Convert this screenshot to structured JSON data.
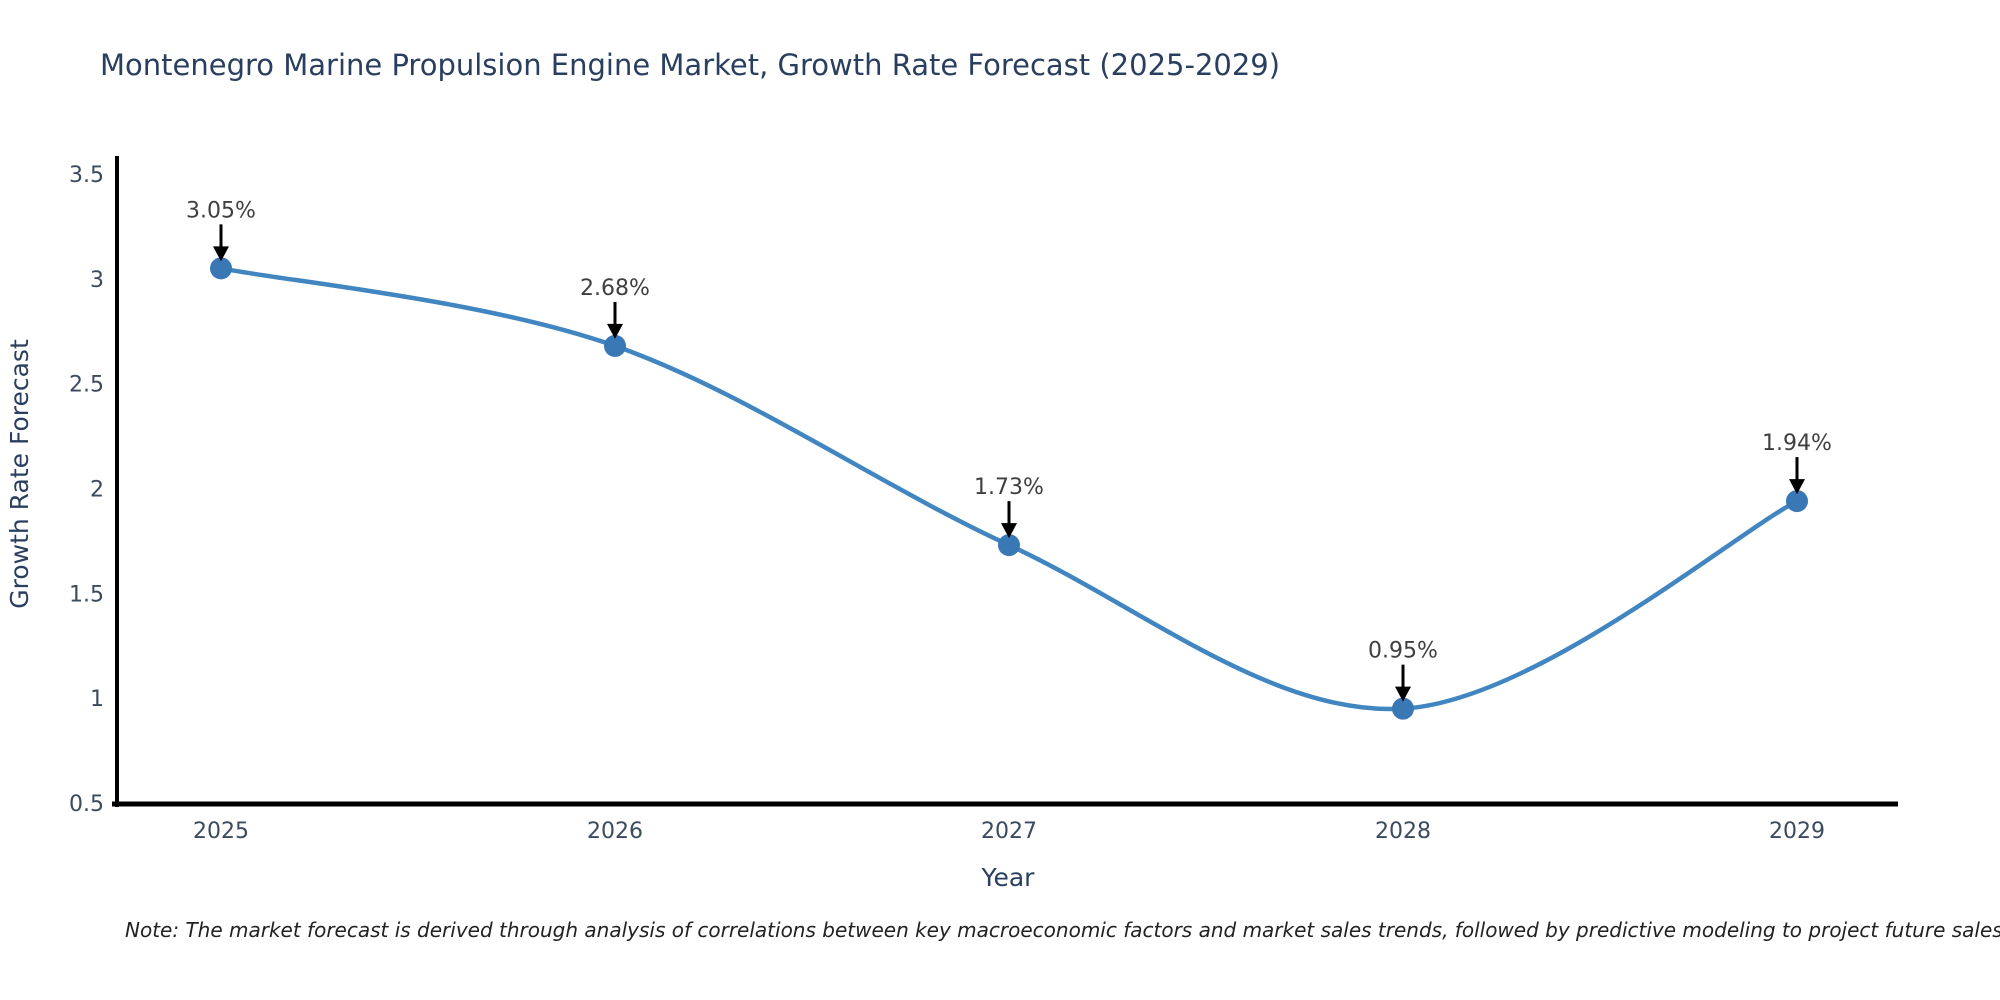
{
  "chart_data": {
    "type": "line",
    "title": "Montenegro Marine Propulsion Engine Market, Growth Rate Forecast (2025-2029)",
    "xlabel": "Year",
    "ylabel": "Growth Rate Forecast",
    "x": [
      2025,
      2026,
      2027,
      2028,
      2029
    ],
    "values": [
      3.05,
      2.68,
      1.73,
      0.95,
      1.94
    ],
    "point_labels": [
      "3.05%",
      "2.68%",
      "1.73%",
      "0.95%",
      "1.94%"
    ],
    "yticks": [
      0.5,
      1,
      1.5,
      2,
      2.5,
      3,
      3.5
    ],
    "ylim": [
      0.5,
      3.5
    ],
    "line_shape": "spline",
    "grid": false,
    "legend": "none",
    "colors": {
      "line": "#4186c0",
      "marker": "#3a77b5",
      "axis": "#000000",
      "arrow": "#000000",
      "annotation_text": "#3f3f3f",
      "tick_text": "#3b4a5f",
      "title_text": "#2a3f5f"
    }
  },
  "note": {
    "text": "Note: The market forecast is derived through analysis of correlations between key macroeconomic factors and market sales trends, followed by predictive modeling to project future sales"
  }
}
